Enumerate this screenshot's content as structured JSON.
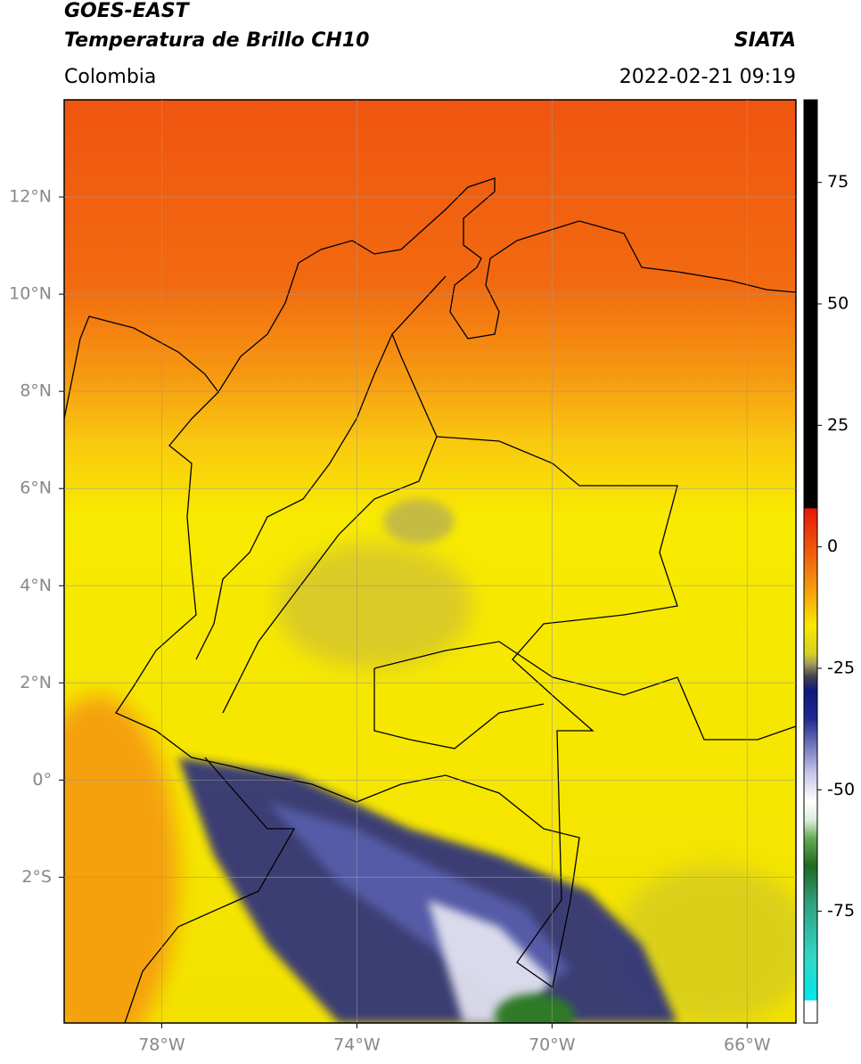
{
  "header": {
    "title": "GOES-EAST",
    "subtitle": "Temperatura de Brillo CH10",
    "source": "SIATA",
    "region": "Colombia",
    "datetime": "2022-02-21 09:19"
  },
  "map": {
    "xlim": [
      -80,
      -65
    ],
    "ylim": [
      -5,
      14
    ],
    "xticks": [
      {
        "value": -78,
        "label": "78°W"
      },
      {
        "value": -74,
        "label": "74°W"
      },
      {
        "value": -70,
        "label": "70°W"
      },
      {
        "value": -66,
        "label": "66°W"
      }
    ],
    "yticks": [
      {
        "value": 12,
        "label": "12°N"
      },
      {
        "value": 10,
        "label": "10°N"
      },
      {
        "value": 8,
        "label": "8°N"
      },
      {
        "value": 6,
        "label": "6°N"
      },
      {
        "value": 4,
        "label": "4°N"
      },
      {
        "value": 2,
        "label": "2°N"
      },
      {
        "value": 0,
        "label": "0°"
      },
      {
        "value": -2,
        "label": "2°S"
      }
    ],
    "grid": true
  },
  "colorbar": {
    "lim": [
      -98,
      92
    ],
    "ticks": [
      75,
      50,
      25,
      0,
      -25,
      -50,
      -75
    ]
  }
}
